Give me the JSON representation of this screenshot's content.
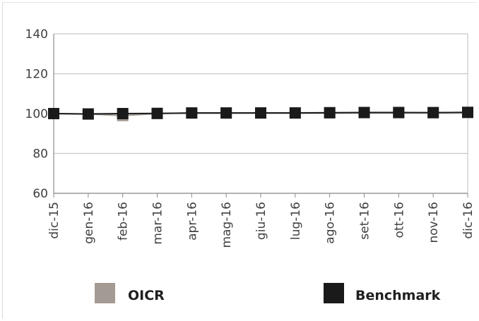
{
  "chart_data": {
    "type": "line",
    "categories": [
      "dic-15",
      "gen-16",
      "feb-16",
      "mar-16",
      "apr-16",
      "mag-16",
      "giu-16",
      "lug-16",
      "ago-16",
      "set-16",
      "ott-16",
      "nov-16",
      "dic-16"
    ],
    "series": [
      {
        "name": "OICR",
        "color": "#a39b93",
        "values": [
          100,
          99.8,
          99.0,
          100.0,
          100.3,
          100.3,
          100.4,
          100.4,
          100.5,
          100.6,
          100.6,
          100.4,
          100.6
        ],
        "marker": "square"
      },
      {
        "name": "Benchmark",
        "color": "#1a1a1a",
        "values": [
          100,
          99.8,
          100.0,
          100.1,
          100.3,
          100.3,
          100.3,
          100.3,
          100.4,
          100.5,
          100.5,
          100.5,
          100.6
        ],
        "marker": "square"
      }
    ],
    "yticks": [
      60,
      80,
      100,
      120,
      140
    ],
    "ylim": [
      60,
      140
    ],
    "grid": true,
    "legend": "bottom",
    "title": "",
    "xlabel": "",
    "ylabel": ""
  }
}
